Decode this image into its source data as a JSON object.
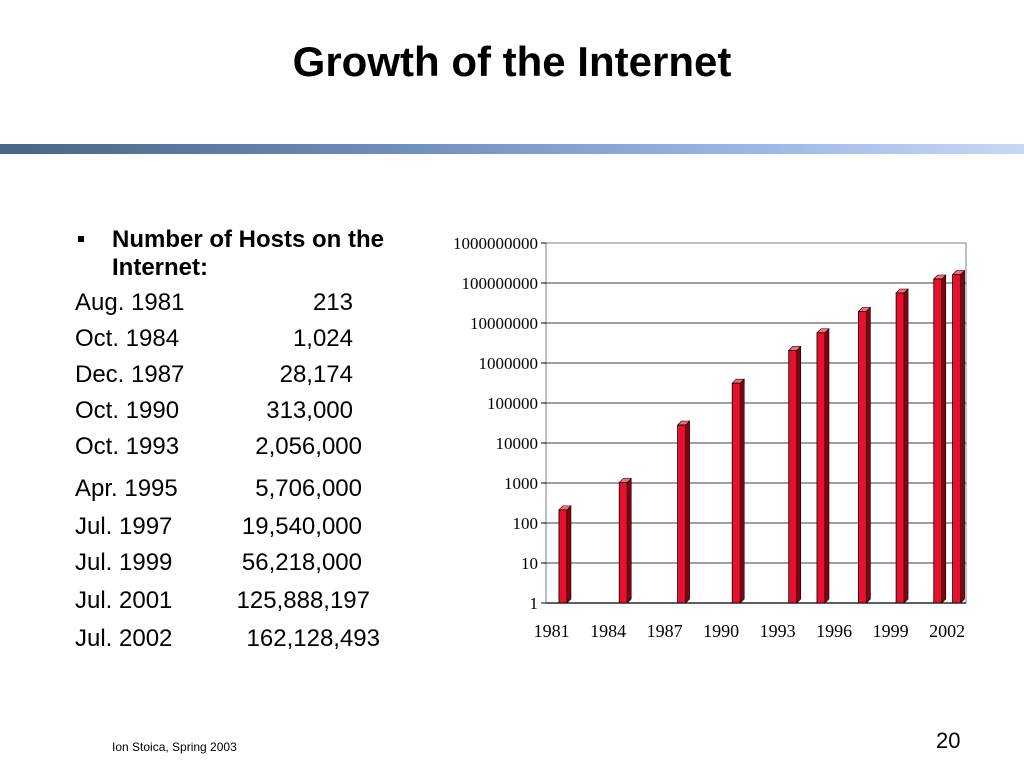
{
  "slide": {
    "title": "Growth of the Internet",
    "footer": "Ion Stoica, Spring 2003",
    "page_number": "20"
  },
  "bullet": {
    "heading": "Number of Hosts on the Internet:"
  },
  "hosts": [
    {
      "date": "Aug. 1981",
      "count": "213"
    },
    {
      "date": "Oct. 1984",
      "count": "1,024"
    },
    {
      "date": "Dec. 1987",
      "count": "28,174"
    },
    {
      "date": "Oct. 1990",
      "count": "313,000"
    },
    {
      "date": "Oct. 1993",
      "count": "2,056,000"
    },
    {
      "date": "Apr. 1995",
      "count": "5,706,000"
    },
    {
      "date": "Jul. 1997",
      "count": "19,540,000"
    },
    {
      "date": "Jul. 1999",
      "count": "56,218,000"
    },
    {
      "date": "Jul. 2001",
      "count": "125,888,197"
    },
    {
      "date": "Jul. 2002",
      "count": "162,128,493"
    }
  ],
  "colors": {
    "bar_fill": "#e8102e",
    "bar_side": "#8a0010",
    "bar_top": "#ff6a7a",
    "header_band": "#6f8fbf"
  },
  "chart_data": {
    "type": "bar",
    "title": "",
    "xlabel": "",
    "ylabel": "",
    "yscale": "log",
    "ylim": [
      1,
      1000000000
    ],
    "grid": "horizontal",
    "legend": "none",
    "y_ticks": [
      "1",
      "10",
      "100",
      "1000",
      "10000",
      "100000",
      "1000000",
      "10000000",
      "100000000",
      "1000000000"
    ],
    "x_ticks": [
      "1981",
      "1984",
      "1987",
      "1990",
      "1993",
      "1996",
      "1999",
      "2002"
    ],
    "x": [
      1981.6,
      1984.8,
      1987.9,
      1990.8,
      1993.8,
      1995.3,
      1997.5,
      1999.5,
      2001.5,
      2002.5
    ],
    "values": [
      213,
      1024,
      28174,
      313000,
      2056000,
      5706000,
      19540000,
      56218000,
      125888197,
      162128493
    ]
  }
}
